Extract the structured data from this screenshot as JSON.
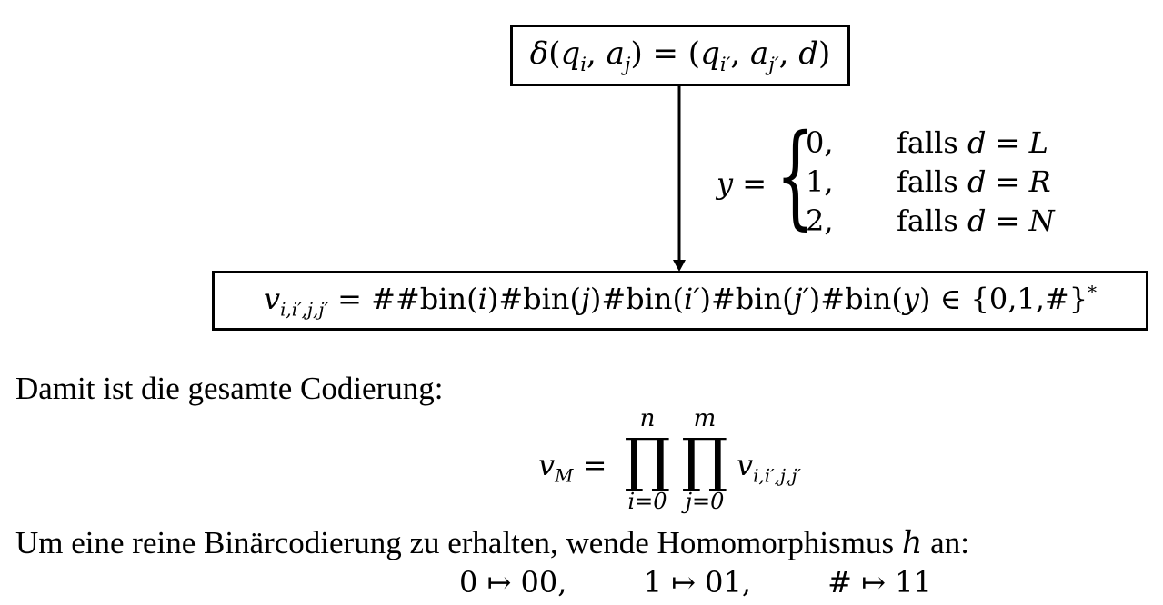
{
  "top_formula": "δ(q_i, a_j) = (q_{i′}, a_{j′}, d)",
  "cases": {
    "lhs": "y =",
    "rows": [
      {
        "value": "0,",
        "cond_prefix": "falls",
        "cond": "d = L"
      },
      {
        "value": "1,",
        "cond_prefix": "falls",
        "cond": "d = R"
      },
      {
        "value": "2,",
        "cond_prefix": "falls",
        "cond": "d = N"
      }
    ]
  },
  "bottom_formula": "v_{i,i′,j,j′} = ##bin(i)#bin(j)#bin(i′)#bin(j′)#bin(y) ∈ {0,1,#}*",
  "line1": "Damit ist die gesamte Codierung:",
  "vm": {
    "lhs": "v_M =",
    "prod1_upper": "n",
    "prod1_lower": "i=0",
    "prod2_upper": "m",
    "prod2_lower": "j=0",
    "rhs": "v_{i,i′,j,j′}"
  },
  "line2": "Um eine reine Binärcodierung zu erhalten, wende Homomorphismus h an:",
  "homomorphism": [
    "0 ↦ 00,",
    "1 ↦ 01,",
    "# ↦ 11"
  ]
}
